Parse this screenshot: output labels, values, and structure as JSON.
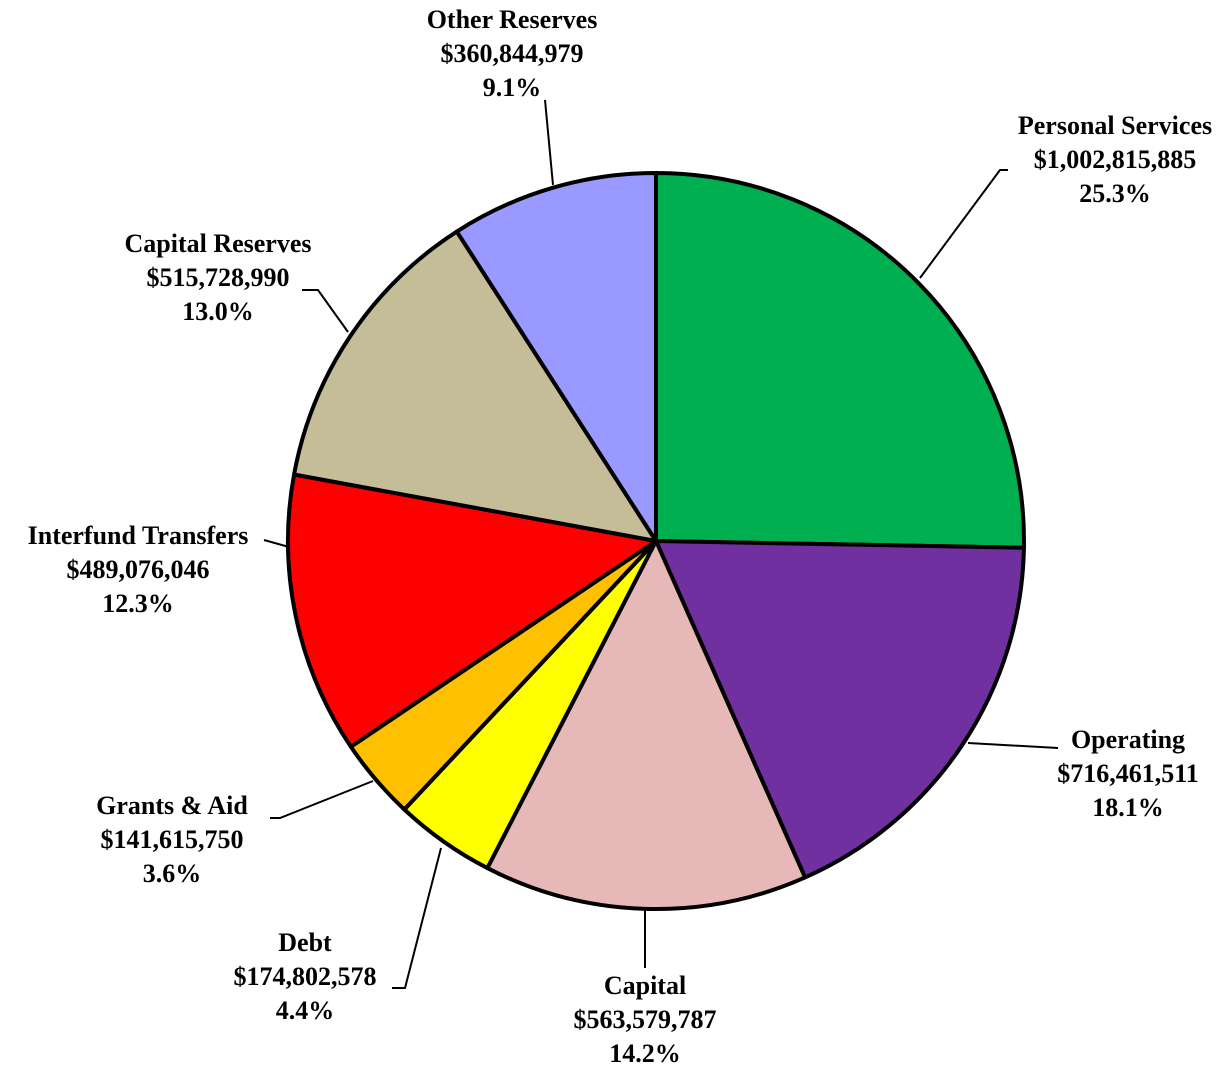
{
  "chart_data": {
    "type": "pie",
    "categories": [
      "Personal Services",
      "Operating",
      "Capital",
      "Debt",
      "Grants & Aid",
      "Interfund Transfers",
      "Capital Reserves",
      "Other Reserves"
    ],
    "values": [
      1002815885,
      716461511,
      563579787,
      174802578,
      141615750,
      489076046,
      515728990,
      360844979
    ],
    "value_labels": [
      "$1,002,815,885",
      "$716,461,511",
      "$563,579,787",
      "$174,802,578",
      "$141,615,750",
      "$489,076,046",
      "$515,728,990",
      "$360,844,979"
    ],
    "shares": [
      25.3,
      18.1,
      14.2,
      4.4,
      3.6,
      12.3,
      13.0,
      9.1
    ],
    "share_labels": [
      "25.3%",
      "18.1%",
      "14.2%",
      "4.4%",
      "3.6%",
      "12.3%",
      "13.0%",
      "9.1%"
    ],
    "colors": [
      "#00b050",
      "#7030a0",
      "#e6b8b7",
      "#ffff00",
      "#ffc000",
      "#ff0000",
      "#c4bd97",
      "#9999ff"
    ]
  }
}
